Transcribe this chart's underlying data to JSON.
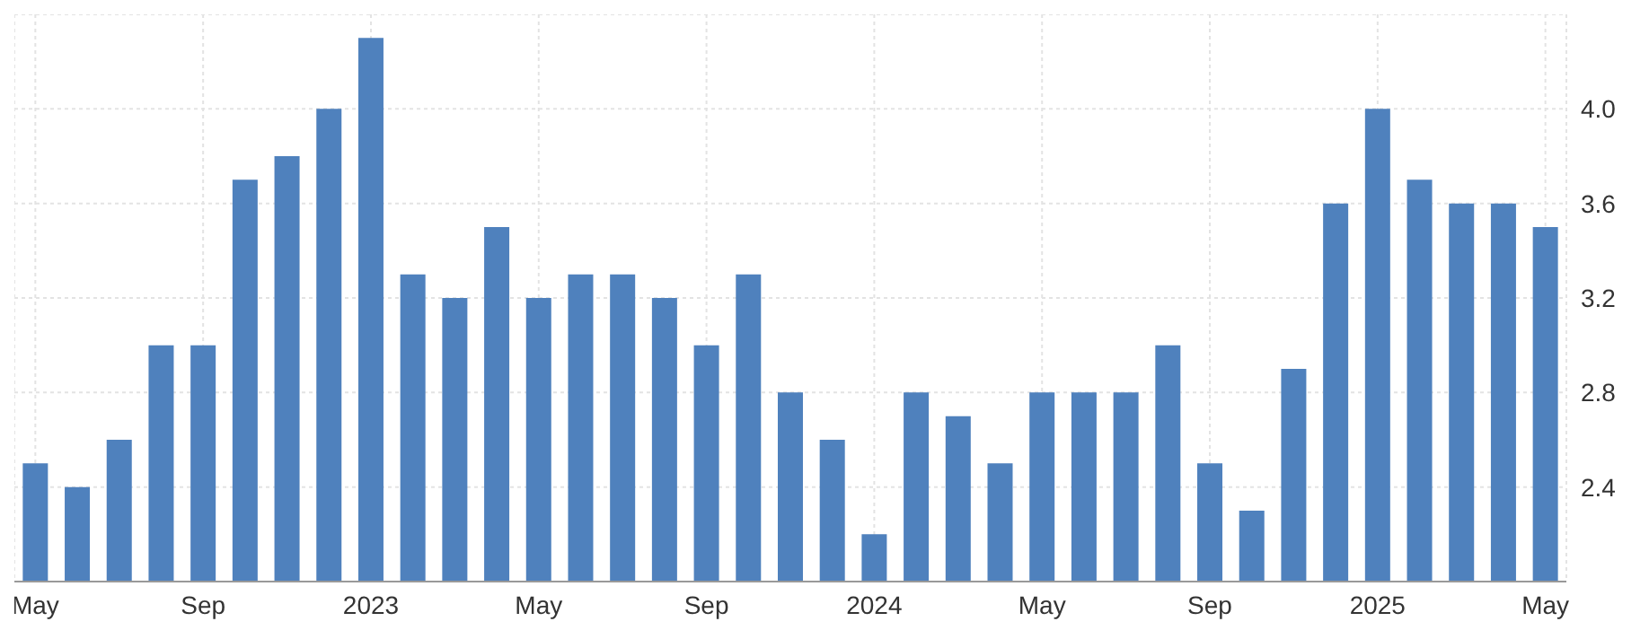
{
  "chart_data": {
    "type": "bar",
    "categories": [
      "May",
      null,
      null,
      null,
      "Sep",
      null,
      null,
      null,
      "2023",
      null,
      null,
      null,
      "May",
      null,
      null,
      null,
      "Sep",
      null,
      null,
      null,
      "2024",
      null,
      null,
      null,
      "May",
      null,
      null,
      null,
      "Sep",
      null,
      null,
      null,
      "2025",
      null,
      null,
      null,
      "May"
    ],
    "values": [
      2.5,
      2.4,
      2.6,
      3.0,
      3.0,
      3.7,
      3.8,
      4.0,
      4.3,
      3.3,
      3.2,
      3.5,
      3.2,
      3.3,
      3.3,
      3.2,
      3.0,
      3.3,
      2.8,
      2.6,
      2.2,
      2.8,
      2.7,
      2.5,
      2.8,
      2.8,
      2.8,
      3.0,
      2.5,
      2.3,
      2.9,
      3.6,
      4.0,
      3.7,
      3.6,
      3.6,
      3.5
    ],
    "color": "#4f81bd",
    "ylim": [
      2.0,
      4.4
    ],
    "yticks": [
      {
        "value": 2.4,
        "label": "2.4"
      },
      {
        "value": 2.8,
        "label": "2.8"
      },
      {
        "value": 3.2,
        "label": "3.2"
      },
      {
        "value": 3.6,
        "label": "3.6"
      },
      {
        "value": 4.0,
        "label": "4.0"
      }
    ],
    "grid": true
  }
}
